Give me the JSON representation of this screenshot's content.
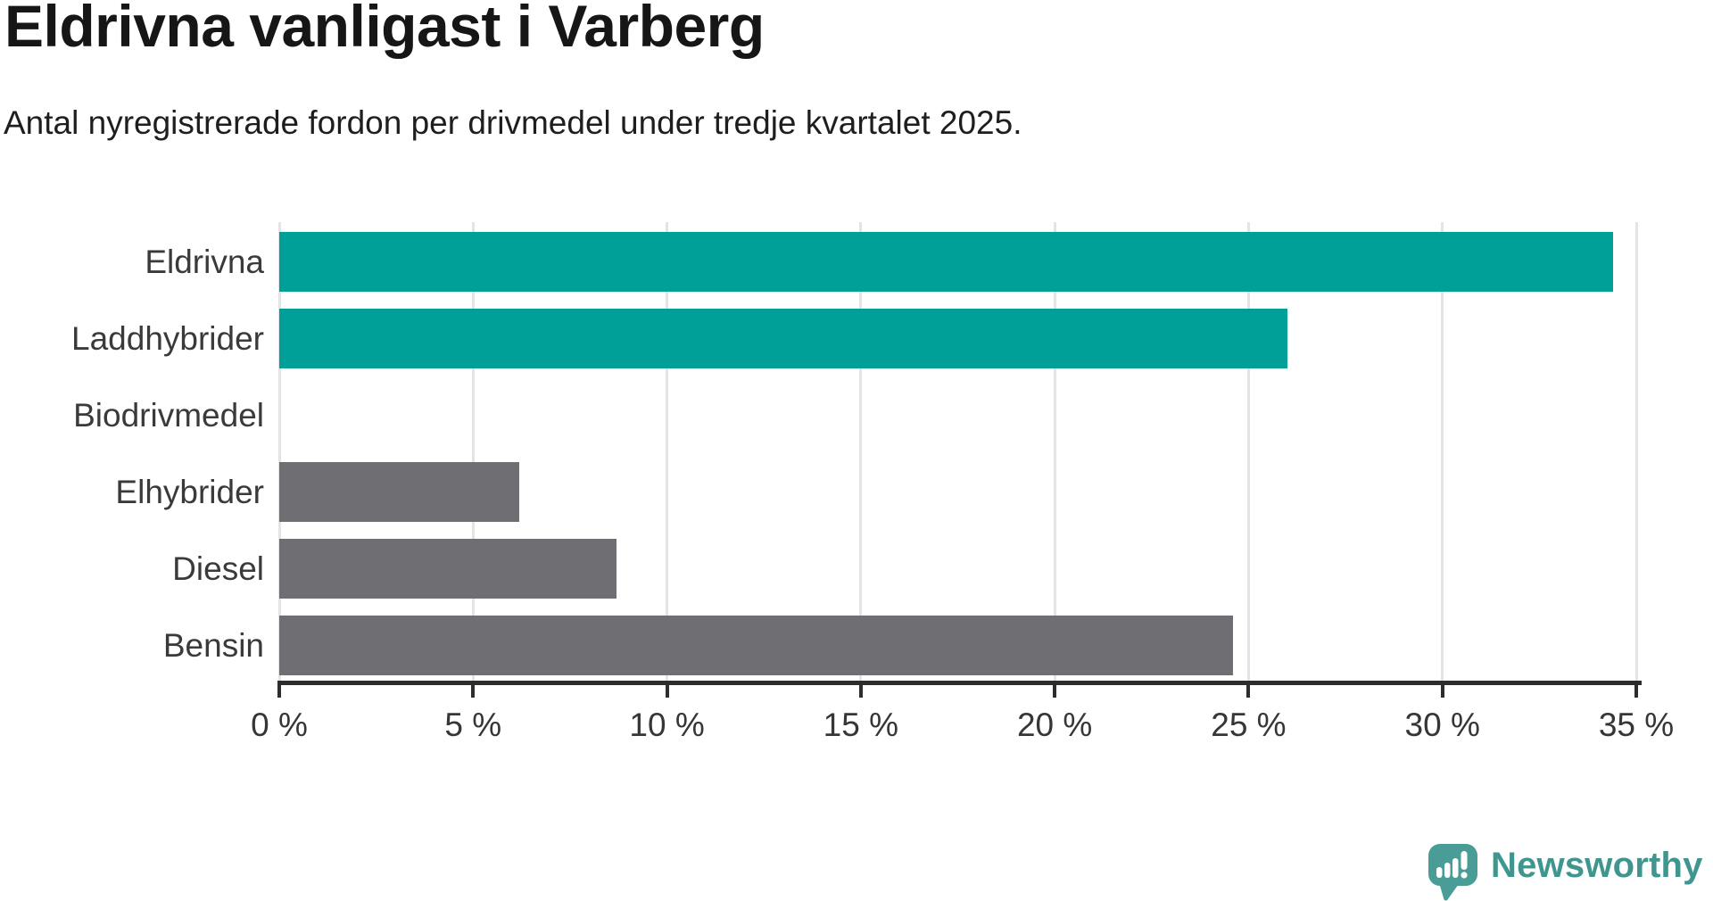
{
  "chart_data": {
    "type": "bar",
    "orientation": "horizontal",
    "title": "Eldrivna vanligast i Varberg",
    "subtitle": "Antal nyregistrerade fordon per drivmedel under tredje kvartalet 2025.",
    "categories": [
      "Eldrivna",
      "Laddhybrider",
      "Biodrivmedel",
      "Elhybrider",
      "Diesel",
      "Bensin"
    ],
    "values": [
      34.4,
      26.0,
      0,
      6.2,
      8.7,
      24.6
    ],
    "value_unit": "%",
    "xlim": [
      0,
      35
    ],
    "ticks": [
      0,
      5,
      10,
      15,
      20,
      25,
      30,
      35
    ],
    "tick_labels": [
      "0 %",
      "5 %",
      "10 %",
      "15 %",
      "20 %",
      "25 %",
      "30 %",
      "35 %"
    ],
    "bar_colors": [
      "#00a099",
      "#00a099",
      "#00a099",
      "#6e6e73",
      "#6e6e73",
      "#6e6e73"
    ],
    "colors": {
      "highlight": "#00a099",
      "default": "#6e6e73",
      "grid": "#e4e4e4",
      "axis": "#2d2d2d"
    },
    "grid": true,
    "legend": false
  },
  "branding": {
    "logo_text": "Newsworthy",
    "logo_text_color": "#3f968f",
    "logo_icon_color": "#4a9c97",
    "logo_icon": "speech-bubble-bar-chart-exclamation"
  }
}
